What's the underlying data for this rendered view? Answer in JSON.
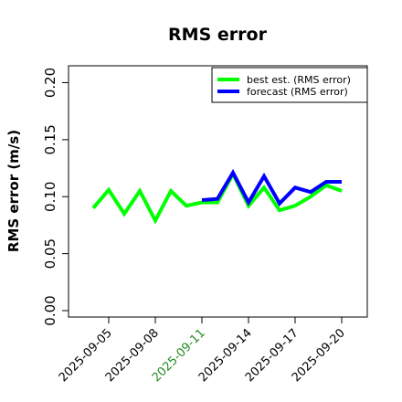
{
  "chart_data": {
    "type": "line",
    "title": "RMS error",
    "xlabel": "",
    "ylabel": "RMS error (m/s)",
    "ylim": [
      0,
      0.21
    ],
    "yticks": [
      "0.00",
      "0.05",
      "0.10",
      "0.15",
      "0.20"
    ],
    "x": [
      "2025-09-04",
      "2025-09-05",
      "2025-09-06",
      "2025-09-07",
      "2025-09-08",
      "2025-09-09",
      "2025-09-10",
      "2025-09-11",
      "2025-09-12",
      "2025-09-13",
      "2025-09-14",
      "2025-09-15",
      "2025-09-16",
      "2025-09-17",
      "2025-09-18",
      "2025-09-19",
      "2025-09-20"
    ],
    "xticks": [
      {
        "label": "2025-09-05",
        "color": "#000000"
      },
      {
        "label": "2025-09-08",
        "color": "#000000"
      },
      {
        "label": "2025-09-11",
        "color": "#228B22"
      },
      {
        "label": "2025-09-14",
        "color": "#000000"
      },
      {
        "label": "2025-09-17",
        "color": "#000000"
      },
      {
        "label": "2025-09-20",
        "color": "#000000"
      }
    ],
    "series": [
      {
        "name": "best est. (RMS error)",
        "color": "#00ff00",
        "x": [
          "2025-09-04",
          "2025-09-05",
          "2025-09-06",
          "2025-09-07",
          "2025-09-08",
          "2025-09-09",
          "2025-09-10",
          "2025-09-11",
          "2025-09-12",
          "2025-09-13",
          "2025-09-14",
          "2025-09-15",
          "2025-09-16",
          "2025-09-17",
          "2025-09-18",
          "2025-09-19",
          "2025-09-20"
        ],
        "values": [
          0.09,
          0.106,
          0.085,
          0.105,
          0.079,
          0.105,
          0.092,
          0.095,
          0.095,
          0.12,
          0.092,
          0.108,
          0.088,
          0.092,
          0.1,
          0.11,
          0.105
        ]
      },
      {
        "name": "forecast (RMS error)",
        "color": "#0000ff",
        "x": [
          "2025-09-11",
          "2025-09-12",
          "2025-09-13",
          "2025-09-14",
          "2025-09-15",
          "2025-09-16",
          "2025-09-17",
          "2025-09-18",
          "2025-09-19",
          "2025-09-20"
        ],
        "values": [
          0.097,
          0.098,
          0.121,
          0.095,
          0.118,
          0.094,
          0.108,
          0.104,
          0.113,
          0.113
        ]
      }
    ],
    "legend_position": "top-right",
    "grid": false
  }
}
